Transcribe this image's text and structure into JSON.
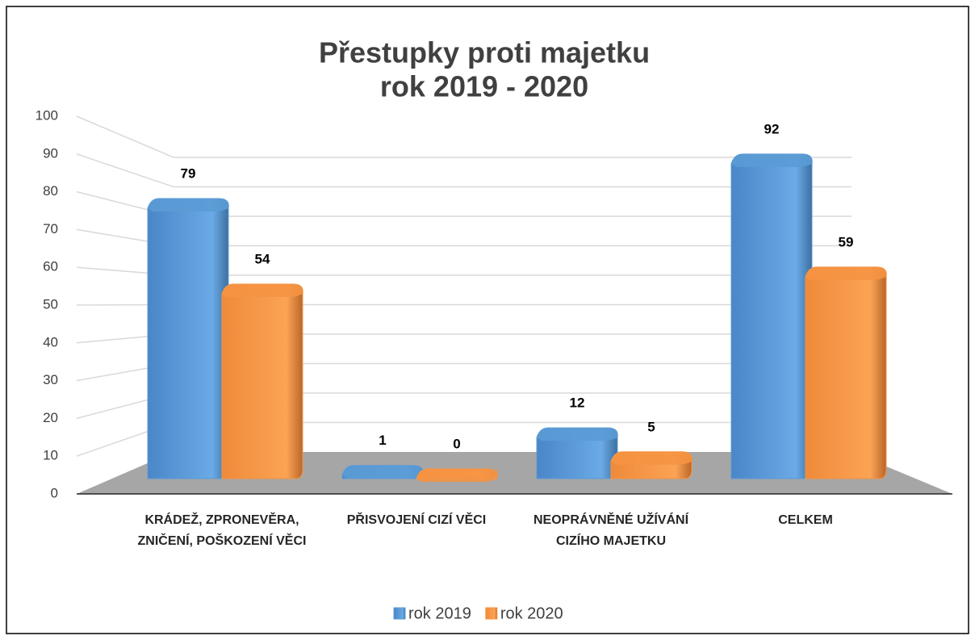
{
  "chart_data": {
    "type": "bar3d",
    "title": "Přestupky proti majetku",
    "subtitle": "rok 2019 - 2020",
    "categories": [
      "KRÁDEŽ, ZPRONEVĚRA, ZNIČENÍ, POŠKOZENÍ VĚCI",
      "PŘISVOJENÍ CIZÍ VĚCI",
      "NEOPRÁVNĚNÉ UŽÍVÁNÍ CIZÍHO MAJETKU",
      "CELKEM"
    ],
    "series": [
      {
        "name": "rok 2019",
        "color": "#5b9bd5",
        "values": [
          79,
          1,
          12,
          92
        ]
      },
      {
        "name": "rok 2020",
        "color": "#f59443",
        "values": [
          54,
          0,
          5,
          59
        ]
      }
    ],
    "ylim": [
      0,
      100
    ],
    "yticks": [
      0,
      10,
      20,
      30,
      40,
      50,
      60,
      70,
      80,
      90,
      100
    ],
    "grid": true,
    "legend": "bottom"
  }
}
